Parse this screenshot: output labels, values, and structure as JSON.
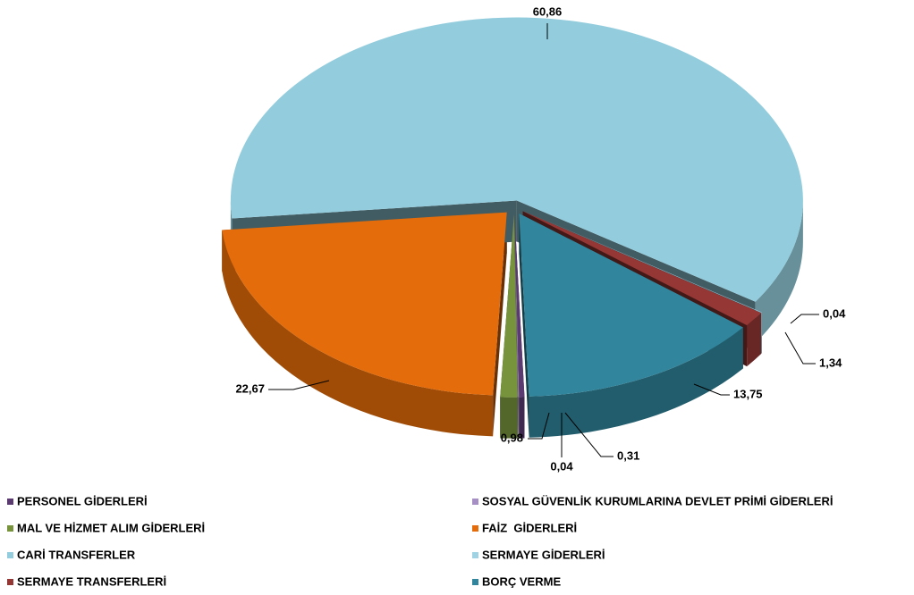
{
  "chart_data": {
    "type": "pie",
    "categories": [
      "PERSONEL GİDERLERİ",
      "SOSYAL GÜVENLİK KURUMLARINA DEVLET PRİMİ GİDERLERİ",
      "MAL VE HİZMET ALIM GİDERLERİ",
      "FAİZ  GİDERLERİ",
      "CARİ TRANSFERLER",
      "SERMAYE GİDERLERİ",
      "SERMAYE TRANSFERLERİ",
      "BORÇ VERME"
    ],
    "values": [
      0.31,
      0.04,
      0.98,
      22.67,
      60.86,
      0.04,
      1.34,
      13.75
    ],
    "value_labels": [
      "0,31",
      "0,04",
      "0,98",
      "22,67",
      "60,86",
      "0,04",
      "1,34",
      "13,75"
    ],
    "colors": [
      "#5b3a72",
      "#a58fc4",
      "#77933c",
      "#e46c0a",
      "#93cddd",
      "#9fd3e3",
      "#953735",
      "#31859c"
    ]
  }
}
